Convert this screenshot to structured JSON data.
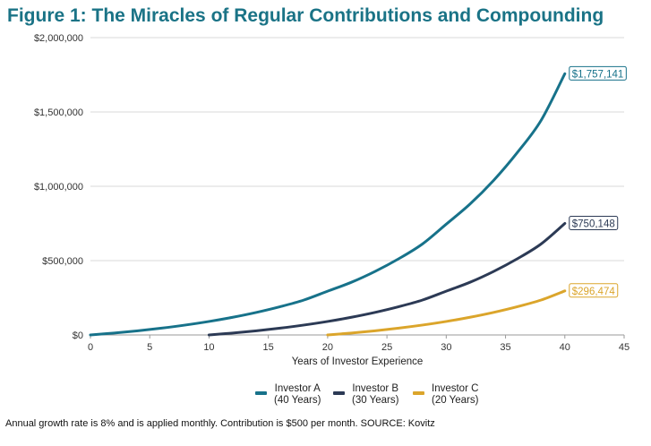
{
  "colors": {
    "title": "#1a7386",
    "investor_a": "#17728a",
    "investor_b": "#2c3a55",
    "investor_c": "#dba52b",
    "grid": "#d9d9d9",
    "axis_text": "#333333"
  },
  "footnote": "Annual growth rate is 8% and is applied monthly. Contribution is $500 per month. SOURCE: Kovitz",
  "chart_data": {
    "type": "line",
    "title": "Figure 1: The Miracles of Regular Contributions and Compounding",
    "xlabel": "Years of Investor Experience",
    "ylabel": "",
    "xlim": [
      0,
      45
    ],
    "ylim": [
      0,
      2000000
    ],
    "x_ticks": [
      0,
      5,
      10,
      15,
      20,
      25,
      30,
      35,
      40,
      45
    ],
    "y_ticks": [
      0,
      500000,
      1000000,
      1500000,
      2000000
    ],
    "y_tick_labels": [
      "$0",
      "$500,000",
      "$1,000,000",
      "$1,500,000",
      "$2,000,000"
    ],
    "grid": "horizontal",
    "legend_position": "bottom",
    "series": [
      {
        "name": "Investor A",
        "name_line2": "(40 Years)",
        "color_key": "investor_a",
        "x": [
          0,
          2,
          4,
          6,
          8,
          10,
          12,
          14,
          16,
          18,
          20,
          22,
          24,
          26,
          28,
          30,
          32,
          34,
          36,
          38,
          40
        ],
        "values": [
          0,
          12965,
          28170,
          45902,
          66577,
          90737,
          118980,
          151878,
          190251,
          235012,
          294510,
          354283,
          427450,
          512800,
          612300,
          745180,
          880130,
          1040010,
          1227650,
          1443700,
          1757141
        ],
        "end_label": "$1,757,141"
      },
      {
        "name": "Investor B",
        "name_line2": "(30 Years)",
        "color_key": "investor_b",
        "x": [
          10,
          12,
          14,
          16,
          18,
          20,
          22,
          24,
          26,
          28,
          30,
          32,
          34,
          36,
          38,
          40
        ],
        "values": [
          0,
          12965,
          28170,
          45902,
          66577,
          90737,
          118980,
          151878,
          190251,
          235012,
          294510,
          354283,
          427450,
          512800,
          612300,
          750148
        ],
        "end_label": "$750,148"
      },
      {
        "name": "Investor C",
        "name_line2": "(20 Years)",
        "color_key": "investor_c",
        "x": [
          20,
          22,
          24,
          26,
          28,
          30,
          32,
          34,
          36,
          38,
          40
        ],
        "values": [
          0,
          12965,
          28170,
          45902,
          66577,
          90737,
          118980,
          151878,
          190251,
          235012,
          296474
        ],
        "end_label": "$296,474"
      }
    ]
  }
}
